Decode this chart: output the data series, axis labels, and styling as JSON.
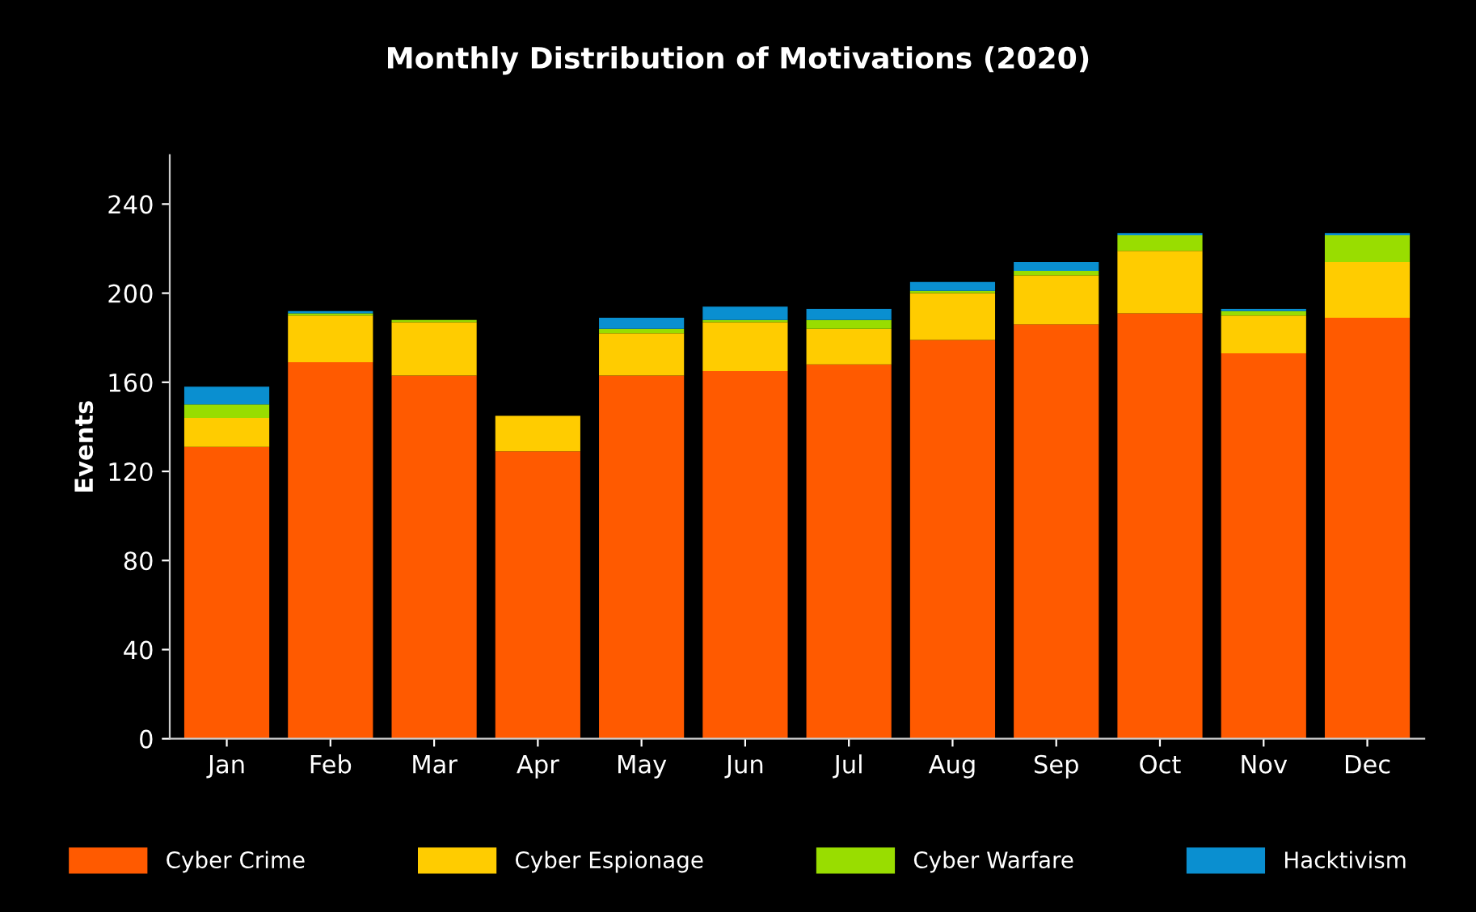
{
  "chart_data": {
    "type": "bar",
    "stacked": true,
    "title": "Monthly Distribution of Motivations (2020)",
    "ylabel": "Events",
    "categories": [
      "Jan",
      "Feb",
      "Mar",
      "Apr",
      "May",
      "Jun",
      "Jul",
      "Aug",
      "Sep",
      "Oct",
      "Nov",
      "Dec"
    ],
    "series": [
      {
        "name": "Cyber Crime",
        "color": "#ff5a00",
        "values": [
          131,
          169,
          163,
          129,
          163,
          165,
          168,
          179,
          186,
          191,
          173,
          189
        ]
      },
      {
        "name": "Cyber Espionage",
        "color": "#ffcc00",
        "values": [
          13,
          21,
          24,
          16,
          19,
          22,
          16,
          21,
          22,
          28,
          17,
          25
        ]
      },
      {
        "name": "Cyber Warfare",
        "color": "#99dd00",
        "values": [
          6,
          1,
          1,
          0,
          2,
          1,
          4,
          1,
          2,
          7,
          2,
          12
        ]
      },
      {
        "name": "Hacktivism",
        "color": "#0a8fd0",
        "values": [
          8,
          1,
          0,
          0,
          5,
          6,
          5,
          4,
          4,
          1,
          1,
          1
        ]
      }
    ],
    "ylim": [
      0,
      262
    ],
    "yticks": [
      0,
      40,
      80,
      120,
      160,
      200,
      240
    ],
    "grid": false,
    "legend": "bottom"
  }
}
